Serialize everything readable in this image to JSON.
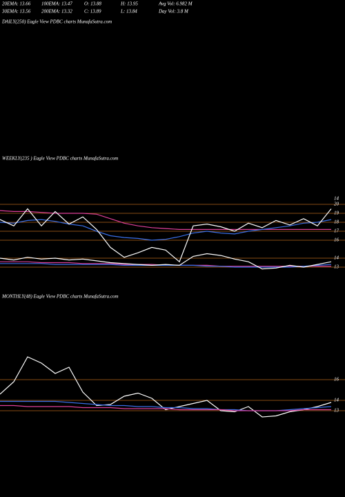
{
  "header": {
    "row1": [
      "20EMA: 13.66",
      "100EMA: 13.47",
      "O: 13.88",
      "H: 13.95",
      "Avg Vol: 6.982  M"
    ],
    "row2": [
      "30EMA: 13.56",
      "200EMA: 13.32",
      "C: 13.89",
      "L: 13.84",
      "Day Vol: 3.8  M"
    ],
    "daily_label": "DAILY(250) Eagle  View  PDBC charts MunafaSutra.com"
  },
  "chart_data": [
    {
      "type": "line",
      "title": "WEEKLY(235                ) Eagle  View  PDBC charts MunafaSutra.com",
      "annotations": [
        "14"
      ],
      "ylim": [
        12,
        21
      ],
      "yticks": [
        20,
        19,
        18,
        17,
        16,
        14,
        13
      ],
      "grid": true,
      "grid_color": "#b5651d",
      "series": [
        {
          "color": "#e0409a",
          "values": [
            19.3,
            19.2,
            19.2,
            19.1,
            19.0,
            19.0,
            19.0,
            18.9,
            18.4,
            17.9,
            17.6,
            17.4,
            17.3,
            17.2,
            17.2,
            17.2,
            17.2,
            17.2,
            17.2,
            17.2,
            17.2,
            17.2,
            17.2,
            17.2,
            17.2
          ]
        },
        {
          "color": "#3a6fe8",
          "values": [
            18.0,
            17.9,
            18.2,
            18.3,
            18.1,
            17.8,
            17.6,
            17.0,
            16.5,
            16.3,
            16.2,
            16.0,
            16.1,
            16.4,
            16.8,
            17.0,
            16.8,
            16.7,
            17.0,
            17.2,
            17.4,
            17.6,
            17.9,
            18.0,
            18.3
          ]
        },
        {
          "color": "#ffffff",
          "values": [
            18.3,
            17.6,
            19.5,
            17.6,
            19.2,
            17.8,
            18.6,
            17.2,
            15.2,
            14.1,
            14.6,
            15.2,
            14.9,
            13.6,
            17.6,
            17.8,
            17.5,
            17.0,
            17.9,
            17.4,
            18.2,
            17.7,
            18.4,
            17.6,
            19.5
          ]
        },
        {
          "color": "#e0409a",
          "values": [
            13.6,
            13.6,
            13.6,
            13.5,
            13.5,
            13.5,
            13.4,
            13.4,
            13.4,
            13.3,
            13.3,
            13.3,
            13.2,
            13.2,
            13.2,
            13.2,
            13.1,
            13.1,
            13.1,
            13.1,
            13.1,
            13.1,
            13.1,
            13.1,
            13.1
          ]
        },
        {
          "color": "#3a6fe8",
          "values": [
            13.4,
            13.4,
            13.4,
            13.4,
            13.3,
            13.3,
            13.3,
            13.3,
            13.3,
            13.2,
            13.2,
            13.2,
            13.2,
            13.2,
            13.2,
            13.1,
            13.1,
            13.0,
            13.0,
            13.0,
            13.0,
            13.0,
            13.1,
            13.2,
            13.3
          ]
        },
        {
          "color": "#ffffff",
          "values": [
            14.0,
            13.8,
            14.1,
            13.9,
            14.0,
            13.8,
            13.9,
            13.7,
            13.5,
            13.4,
            13.3,
            13.2,
            13.3,
            13.2,
            14.2,
            14.5,
            14.3,
            13.9,
            13.6,
            12.8,
            12.9,
            13.2,
            13.0,
            13.3,
            13.6
          ]
        }
      ]
    },
    {
      "type": "line",
      "title": "MONTHLY(48) Eagle  View  PDBC charts MunafaSutra.com",
      "ylim": [
        12,
        24
      ],
      "yticks": [
        16,
        14,
        13
      ],
      "grid": true,
      "grid_color": "#b5651d",
      "series": [
        {
          "color": "#ffffff",
          "values": [
            14.6,
            15.8,
            18.2,
            17.6,
            16.6,
            17.2,
            14.8,
            13.5,
            13.6,
            14.4,
            14.7,
            14.2,
            13.1,
            13.4,
            13.7,
            14.0,
            13.0,
            12.9,
            13.4,
            12.4,
            12.5,
            12.9,
            13.1,
            13.4,
            13.8
          ]
        },
        {
          "color": "#3a6fe8",
          "values": [
            13.9,
            13.9,
            13.9,
            13.9,
            13.9,
            13.8,
            13.7,
            13.6,
            13.5,
            13.5,
            13.4,
            13.4,
            13.3,
            13.3,
            13.2,
            13.2,
            13.1,
            13.1,
            13.0,
            13.0,
            13.0,
            13.1,
            13.2,
            13.3,
            13.4
          ]
        },
        {
          "color": "#e0409a",
          "values": [
            13.5,
            13.5,
            13.4,
            13.4,
            13.4,
            13.4,
            13.3,
            13.3,
            13.3,
            13.2,
            13.2,
            13.2,
            13.2,
            13.1,
            13.1,
            13.1,
            13.1,
            13.0,
            13.0,
            13.0,
            13.0,
            13.0,
            13.1,
            13.1,
            13.1
          ]
        }
      ]
    }
  ]
}
